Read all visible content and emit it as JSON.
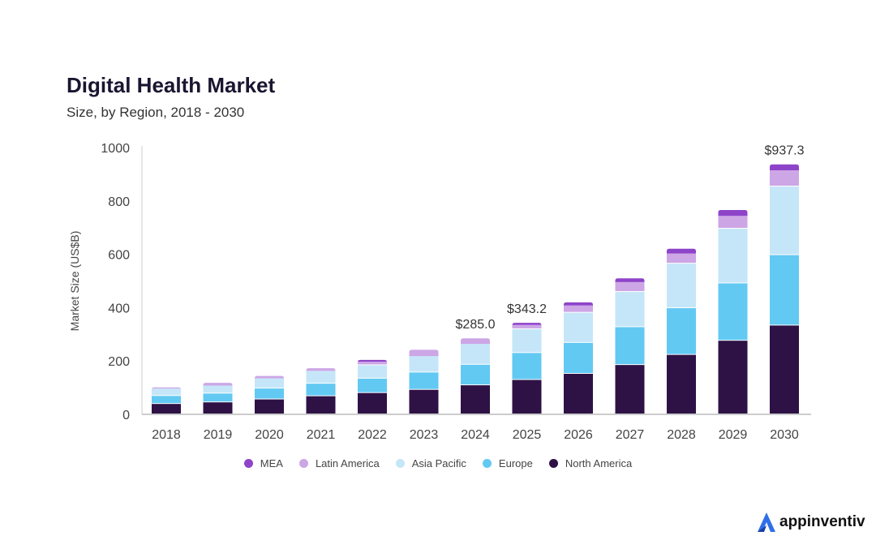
{
  "chart_data": {
    "type": "bar",
    "stacked": true,
    "title": "Digital Health Market",
    "subtitle": "Size, by Region, 2018 - 2030",
    "xlabel": "",
    "ylabel": "Market Size (US$B)",
    "ylim": [
      0,
      1000
    ],
    "yticks": [
      0,
      200,
      400,
      600,
      800,
      1000
    ],
    "grid": false,
    "legend_placement": "bottom",
    "categories": [
      "2018",
      "2019",
      "2020",
      "2021",
      "2022",
      "2023",
      "2024",
      "2025",
      "2026",
      "2027",
      "2028",
      "2029",
      "2030"
    ],
    "series": [
      {
        "name": "North America",
        "color": "#2e1246",
        "values": [
          39,
          45,
          56,
          68,
          80,
          92,
          109,
          129,
          152,
          185,
          223,
          276,
          333
        ]
      },
      {
        "name": "Europe",
        "color": "#62c9f3",
        "values": [
          30,
          33,
          41,
          47,
          54,
          65,
          77,
          101,
          116,
          142,
          175,
          215,
          264
        ]
      },
      {
        "name": "Asia Pacific",
        "color": "#c5e6f8",
        "values": [
          28,
          30,
          38,
          48,
          50,
          61,
          78,
          89,
          113,
          132,
          167,
          205,
          257
        ]
      },
      {
        "name": "Latin America",
        "color": "#cda6e6",
        "values": [
          4,
          10,
          9,
          10,
          13,
          24,
          21,
          16,
          27,
          37,
          38,
          48,
          61
        ]
      },
      {
        "name": "MEA",
        "color": "#8e44c9",
        "values": [
          0,
          0,
          0,
          0,
          7,
          0,
          0,
          8,
          12,
          14,
          18,
          22,
          22
        ]
      }
    ],
    "legend_order": [
      "MEA",
      "Latin America",
      "Asia Pacific",
      "Europe",
      "North America"
    ],
    "annotations": [
      {
        "category": "2024",
        "text": "$285.0"
      },
      {
        "category": "2025",
        "text": "$343.2"
      },
      {
        "category": "2030",
        "text": "$937.3"
      }
    ]
  },
  "brand": {
    "name": "appinventiv",
    "color": "#2f6fe8"
  }
}
